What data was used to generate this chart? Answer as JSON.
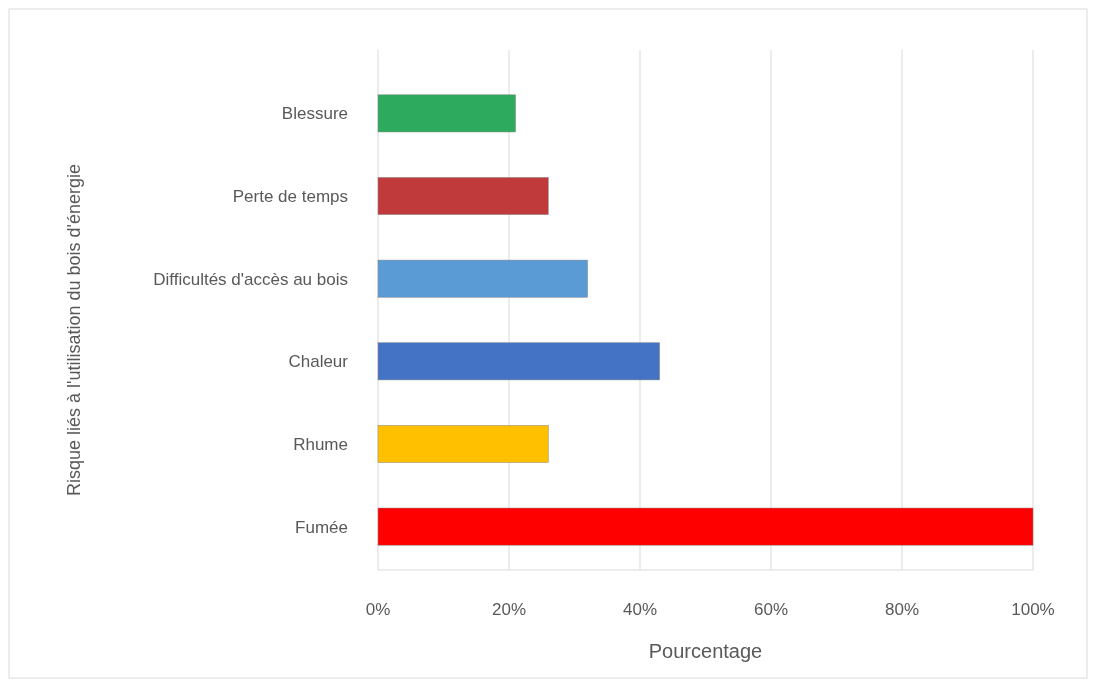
{
  "chart_data": {
    "type": "bar",
    "orientation": "horizontal",
    "xlabel": "Pourcentage",
    "ylabel": "Risque liés à l'utilisation du bois d'énergie",
    "categories": [
      "Blessure",
      "Perte de temps",
      "Difficultés d'accès au bois",
      "Chaleur",
      "Rhume",
      "Fumée"
    ],
    "values": [
      21,
      26,
      32,
      43,
      26,
      100
    ],
    "colors": [
      "#2eaa5e",
      "#c0393b",
      "#5b9bd5",
      "#4472c4",
      "#ffc000",
      "#ff0000"
    ],
    "xlim": [
      0,
      100
    ],
    "xticks": [
      {
        "value": 0,
        "label": "0%"
      },
      {
        "value": 20,
        "label": "20%"
      },
      {
        "value": 40,
        "label": "40%"
      },
      {
        "value": 60,
        "label": "60%"
      },
      {
        "value": 80,
        "label": "80%"
      },
      {
        "value": 100,
        "label": "100%"
      }
    ],
    "grid": "x"
  }
}
